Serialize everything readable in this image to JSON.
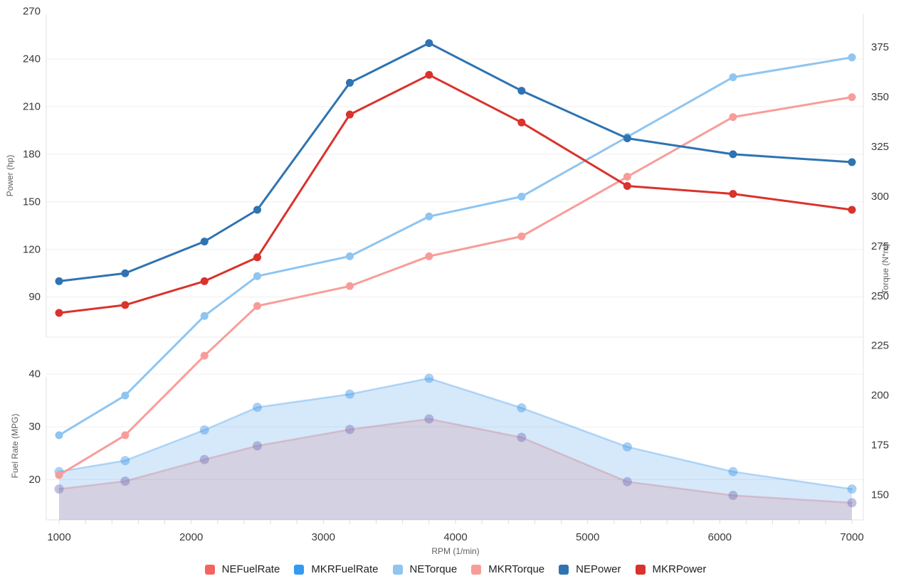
{
  "chart_data": {
    "type": "line",
    "title": "",
    "xlabel": "RPM (1/min)",
    "x": [
      1000,
      1500,
      2100,
      2500,
      3200,
      3800,
      4500,
      5300,
      6100,
      7000
    ],
    "x_ticks": [
      1000,
      2000,
      3000,
      4000,
      5000,
      6000,
      7000
    ],
    "x_minor_tick_step": 200,
    "grid": true,
    "legend_position": "bottom",
    "axes": {
      "power": {
        "label": "Power (hp)",
        "side": "left-top",
        "ticks": [
          90,
          120,
          150,
          180,
          210,
          240,
          270
        ],
        "ylim": [
          90,
          270
        ]
      },
      "fuel": {
        "label": "Fuel Rate (MPG)",
        "side": "left-bottom",
        "ticks": [
          20,
          30,
          40
        ],
        "ylim": [
          20,
          40
        ]
      },
      "torque": {
        "label": "Torque (N*m)",
        "side": "right",
        "ticks": [
          150,
          175,
          200,
          225,
          250,
          275,
          300,
          325,
          350,
          375
        ],
        "ylim": [
          150,
          375
        ]
      }
    },
    "series": [
      {
        "name": "NEFuelRate",
        "axis": "fuel",
        "style": "area",
        "color": "#f4645f",
        "values": [
          18.2,
          19.7,
          23.8,
          26.4,
          29.5,
          31.5,
          28.0,
          19.6,
          17.0,
          15.6
        ]
      },
      {
        "name": "MKRFuelRate",
        "axis": "fuel",
        "style": "area",
        "color": "#339af2",
        "values": [
          21.5,
          23.6,
          29.4,
          33.7,
          36.2,
          39.2,
          33.6,
          26.2,
          21.5,
          18.2
        ]
      },
      {
        "name": "NETorque",
        "axis": "torque",
        "style": "line",
        "color": "#8ec5f1",
        "values": [
          180,
          200,
          240,
          260,
          270,
          290,
          300,
          330,
          360,
          370
        ]
      },
      {
        "name": "MKRTorque",
        "axis": "torque",
        "style": "line",
        "color": "#f79d99",
        "values": [
          160,
          180,
          220,
          245,
          255,
          270,
          280,
          310,
          340,
          350
        ]
      },
      {
        "name": "NEPower",
        "axis": "power",
        "style": "line",
        "color": "#2f73b2",
        "values": [
          100,
          105,
          125,
          145,
          225,
          250,
          220,
          190,
          180,
          175
        ]
      },
      {
        "name": "MKRPower",
        "axis": "power",
        "style": "line",
        "color": "#da322c",
        "values": [
          80,
          85,
          100,
          115,
          205,
          230,
          200,
          160,
          155,
          145
        ]
      }
    ],
    "legend": [
      "NEFuelRate",
      "MKRFuelRate",
      "NETorque",
      "MKRTorque",
      "NEPower",
      "MKRPower"
    ]
  }
}
